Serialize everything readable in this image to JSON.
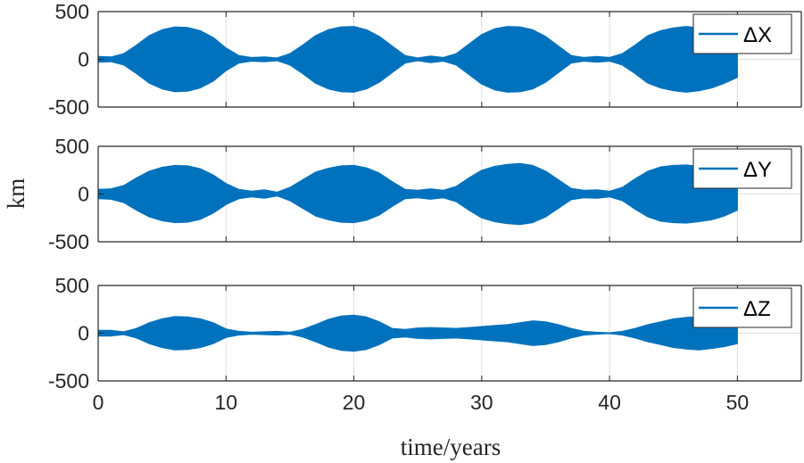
{
  "chart_data": {
    "type": "area",
    "xlabel": "time/years",
    "ylabel": "km",
    "xlim": [
      0,
      55
    ],
    "xticks": [
      0,
      10,
      20,
      30,
      40,
      50
    ],
    "xtick_labels": [
      "0",
      "10",
      "20",
      "30",
      "40",
      "50"
    ],
    "ylim": [
      -500,
      500
    ],
    "yticks": [
      -500,
      0,
      500
    ],
    "ytick_labels": [
      "-500",
      "0",
      "500"
    ],
    "grid": true,
    "legend_position": "top-right",
    "series_color": "#0072BD",
    "panels": [
      {
        "legend": "ΔX",
        "envelope": {
          "x": [
            0,
            1,
            2,
            3,
            4,
            5,
            6,
            7,
            8,
            9,
            10,
            11,
            12,
            13,
            14,
            15,
            16,
            17,
            18,
            19,
            20,
            21,
            22,
            23,
            24,
            25,
            26,
            27,
            28,
            29,
            30,
            31,
            32,
            33,
            34,
            35,
            36,
            37,
            38,
            39,
            40,
            41,
            42,
            43,
            44,
            45,
            46,
            47,
            48,
            49,
            50
          ],
          "upper": [
            30,
            25,
            60,
            150,
            250,
            310,
            340,
            335,
            300,
            230,
            120,
            40,
            20,
            25,
            15,
            60,
            150,
            250,
            310,
            340,
            345,
            310,
            240,
            140,
            40,
            15,
            35,
            20,
            60,
            160,
            260,
            320,
            345,
            340,
            310,
            240,
            140,
            40,
            20,
            30,
            20,
            60,
            150,
            250,
            300,
            330,
            345,
            330,
            300,
            250,
            190
          ],
          "lower": [
            -30,
            -25,
            -60,
            -150,
            -250,
            -310,
            -340,
            -335,
            -300,
            -230,
            -120,
            -40,
            -20,
            -25,
            -15,
            -60,
            -150,
            -250,
            -310,
            -340,
            -345,
            -310,
            -240,
            -140,
            -40,
            -15,
            -35,
            -20,
            -60,
            -160,
            -260,
            -320,
            -345,
            -340,
            -310,
            -240,
            -140,
            -40,
            -20,
            -30,
            -20,
            -60,
            -150,
            -250,
            -300,
            -330,
            -345,
            -330,
            -300,
            -250,
            -190
          ]
        }
      },
      {
        "legend": "ΔY",
        "envelope": {
          "x": [
            0,
            1,
            2,
            3,
            4,
            5,
            6,
            7,
            8,
            9,
            10,
            11,
            12,
            13,
            14,
            15,
            16,
            17,
            18,
            19,
            20,
            21,
            22,
            23,
            24,
            25,
            26,
            27,
            28,
            29,
            30,
            31,
            32,
            33,
            34,
            35,
            36,
            37,
            38,
            39,
            40,
            41,
            42,
            43,
            44,
            45,
            46,
            47,
            48,
            49,
            50
          ],
          "upper": [
            50,
            55,
            90,
            170,
            240,
            280,
            300,
            295,
            265,
            200,
            110,
            50,
            30,
            45,
            20,
            70,
            150,
            230,
            270,
            295,
            300,
            275,
            220,
            130,
            50,
            40,
            55,
            40,
            80,
            170,
            250,
            290,
            310,
            320,
            300,
            240,
            150,
            60,
            40,
            45,
            30,
            70,
            160,
            240,
            285,
            300,
            305,
            290,
            270,
            230,
            170
          ],
          "lower": [
            -50,
            -55,
            -90,
            -170,
            -240,
            -280,
            -300,
            -295,
            -265,
            -200,
            -110,
            -50,
            -30,
            -45,
            -20,
            -70,
            -150,
            -230,
            -270,
            -295,
            -300,
            -275,
            -220,
            -130,
            -50,
            -40,
            -55,
            -40,
            -80,
            -170,
            -250,
            -290,
            -310,
            -320,
            -300,
            -240,
            -150,
            -60,
            -40,
            -45,
            -30,
            -70,
            -160,
            -240,
            -285,
            -300,
            -305,
            -290,
            -270,
            -230,
            -170
          ]
        }
      },
      {
        "legend": "ΔZ",
        "envelope": {
          "x": [
            0,
            1,
            2,
            3,
            4,
            5,
            6,
            7,
            8,
            9,
            10,
            11,
            12,
            13,
            14,
            15,
            16,
            17,
            18,
            19,
            20,
            21,
            22,
            23,
            24,
            25,
            26,
            27,
            28,
            29,
            30,
            31,
            32,
            33,
            34,
            35,
            36,
            37,
            38,
            39,
            40,
            41,
            42,
            43,
            44,
            45,
            46,
            47,
            48,
            49,
            50
          ],
          "upper": [
            30,
            30,
            15,
            50,
            110,
            150,
            175,
            170,
            150,
            110,
            45,
            20,
            10,
            15,
            20,
            10,
            40,
            90,
            145,
            180,
            190,
            170,
            120,
            50,
            40,
            55,
            60,
            55,
            50,
            60,
            70,
            80,
            90,
            110,
            130,
            120,
            90,
            50,
            20,
            10,
            5,
            20,
            50,
            90,
            120,
            150,
            165,
            175,
            160,
            140,
            110
          ],
          "lower": [
            -30,
            -30,
            -15,
            -50,
            -110,
            -150,
            -175,
            -170,
            -150,
            -110,
            -45,
            -20,
            -10,
            -15,
            -20,
            -10,
            -40,
            -90,
            -145,
            -180,
            -190,
            -170,
            -120,
            -50,
            -40,
            -55,
            -60,
            -55,
            -50,
            -60,
            -70,
            -80,
            -90,
            -110,
            -130,
            -120,
            -90,
            -50,
            -20,
            -10,
            -5,
            -20,
            -50,
            -90,
            -120,
            -150,
            -165,
            -175,
            -160,
            -140,
            -110
          ]
        }
      }
    ]
  }
}
